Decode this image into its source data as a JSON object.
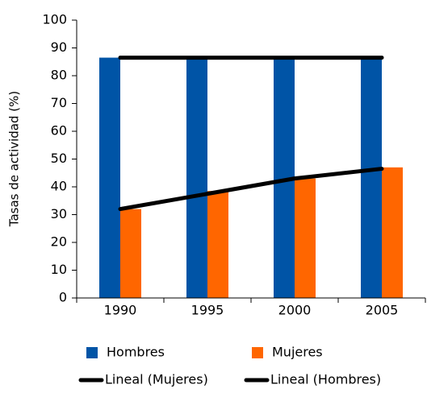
{
  "chart_data": {
    "type": "bar",
    "y_label": "Tasas de actividad (%)",
    "categories": [
      "1990",
      "1995",
      "2000",
      "2005"
    ],
    "series": [
      {
        "name": "Hombres",
        "color": "#0054a6",
        "values": [
          86.5,
          86.5,
          86.5,
          86.5
        ]
      },
      {
        "name": "Mujeres",
        "color": "#ff6600",
        "values": [
          32,
          38.5,
          43,
          47
        ]
      },
      {
        "name": "Lineal (Mujeres)",
        "type": "line",
        "color": "#000000",
        "values": [
          32,
          37.5,
          43,
          46.5
        ]
      },
      {
        "name": "Lineal (Hombres)",
        "type": "line",
        "color": "#000000",
        "values": [
          86.5,
          86.5,
          86.5,
          86.5
        ]
      }
    ],
    "ylim": [
      0,
      100
    ],
    "yticks": [
      0,
      10,
      20,
      30,
      40,
      50,
      60,
      70,
      80,
      90,
      100
    ],
    "grid": false
  }
}
